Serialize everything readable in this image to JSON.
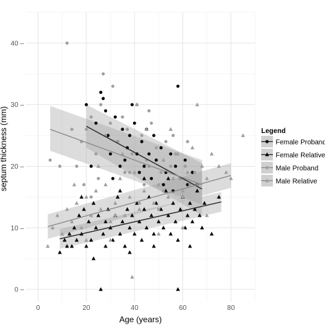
{
  "chart_data": {
    "type": "scatter",
    "xlabel": "Age (years)",
    "ylabel": "septum thickness (mm)",
    "xlim": [
      -5,
      90
    ],
    "ylim": [
      -2,
      45
    ],
    "x_ticks": [
      0,
      20,
      40,
      60,
      80
    ],
    "y_ticks": [
      0,
      10,
      20,
      30,
      40
    ],
    "x_tick_labels": [
      "0",
      "20",
      "40",
      "60",
      "80"
    ],
    "y_tick_labels": [
      "0 –",
      "10 –",
      "20 –",
      "30 –",
      "40 –"
    ],
    "grid": true,
    "legend_position": "right",
    "legend_title": "Legend",
    "series": [
      {
        "name": "Female Proband",
        "color": "#000000",
        "marker": "circle",
        "fit": {
          "x": [
            20,
            68
          ],
          "y": [
            26.5,
            16.3
          ],
          "ci_upper": [
            30.0,
            20.5
          ],
          "ci_lower": [
            23.0,
            12.0
          ]
        },
        "points": [
          [
            20,
            30
          ],
          [
            24,
            27
          ],
          [
            26,
            32
          ],
          [
            27,
            31
          ],
          [
            28,
            29
          ],
          [
            29,
            25
          ],
          [
            30,
            22
          ],
          [
            32,
            28
          ],
          [
            33,
            24
          ],
          [
            35,
            26
          ],
          [
            37,
            23
          ],
          [
            38,
            25
          ],
          [
            40,
            27
          ],
          [
            41,
            22
          ],
          [
            43,
            24
          ],
          [
            44,
            20
          ],
          [
            46,
            22
          ],
          [
            48,
            25
          ],
          [
            49,
            21
          ],
          [
            51,
            23
          ],
          [
            53,
            19
          ],
          [
            55,
            22
          ],
          [
            57,
            20
          ],
          [
            58,
            33
          ],
          [
            59,
            18
          ],
          [
            61,
            21
          ],
          [
            62,
            17
          ],
          [
            64,
            19
          ],
          [
            66,
            17
          ],
          [
            22,
            20
          ],
          [
            31,
            18
          ],
          [
            36,
            21
          ],
          [
            42,
            19
          ],
          [
            47,
            18
          ],
          [
            52,
            17
          ],
          [
            56,
            16
          ],
          [
            45,
            26
          ],
          [
            39,
            30
          ],
          [
            34,
            20
          ]
        ]
      },
      {
        "name": "Female Relative",
        "color": "#000000",
        "marker": "triangle",
        "fit": {
          "x": [
            9,
            76
          ],
          "y": [
            8.2,
            14.2
          ],
          "ci_upper": [
            9.8,
            15.8
          ],
          "ci_lower": [
            6.6,
            12.6
          ]
        },
        "points": [
          [
            9,
            6
          ],
          [
            11,
            8
          ],
          [
            12,
            7
          ],
          [
            13,
            9
          ],
          [
            14,
            7
          ],
          [
            15,
            10
          ],
          [
            16,
            8
          ],
          [
            17,
            12
          ],
          [
            18,
            9
          ],
          [
            19,
            13
          ],
          [
            20,
            7
          ],
          [
            21,
            11
          ],
          [
            22,
            8
          ],
          [
            23,
            14
          ],
          [
            24,
            10
          ],
          [
            25,
            12
          ],
          [
            26,
            0
          ],
          [
            27,
            9
          ],
          [
            28,
            11
          ],
          [
            29,
            13
          ],
          [
            30,
            10
          ],
          [
            31,
            8
          ],
          [
            32,
            12
          ],
          [
            33,
            15
          ],
          [
            34,
            9
          ],
          [
            35,
            11
          ],
          [
            36,
            7
          ],
          [
            37,
            13
          ],
          [
            38,
            10
          ],
          [
            39,
            12
          ],
          [
            40,
            9
          ],
          [
            41,
            14
          ],
          [
            42,
            11
          ],
          [
            43,
            8
          ],
          [
            44,
            13
          ],
          [
            45,
            10
          ],
          [
            46,
            15
          ],
          [
            47,
            12
          ],
          [
            48,
            9
          ],
          [
            49,
            14
          ],
          [
            50,
            11
          ],
          [
            51,
            13
          ],
          [
            52,
            10
          ],
          [
            53,
            16
          ],
          [
            54,
            12
          ],
          [
            55,
            9
          ],
          [
            56,
            14
          ],
          [
            57,
            11
          ],
          [
            58,
            0
          ],
          [
            59,
            13
          ],
          [
            60,
            15
          ],
          [
            61,
            10
          ],
          [
            62,
            12
          ],
          [
            63,
            14
          ],
          [
            64,
            11
          ],
          [
            65,
            13
          ],
          [
            66,
            16
          ],
          [
            67,
            12
          ],
          [
            69,
            14
          ],
          [
            72,
            9
          ],
          [
            75,
            15
          ],
          [
            18,
            15
          ],
          [
            28,
            7
          ],
          [
            38,
            6
          ],
          [
            48,
            7
          ],
          [
            58,
            8
          ],
          [
            68,
            10
          ],
          [
            44,
            18
          ],
          [
            34,
            16
          ],
          [
            54,
            18
          ],
          [
            23,
            5
          ],
          [
            63,
            7
          ]
        ]
      },
      {
        "name": "Male Proband",
        "color": "#9e9e9e",
        "marker": "circle",
        "fit": {
          "x": [
            5,
            68
          ],
          "y": [
            26.0,
            17.0
          ],
          "ci_upper": [
            29.8,
            21.0
          ],
          "ci_lower": [
            22.5,
            13.8
          ]
        },
        "points": [
          [
            5,
            21
          ],
          [
            12,
            40
          ],
          [
            14,
            26
          ],
          [
            18,
            24
          ],
          [
            20,
            26
          ],
          [
            22,
            28
          ],
          [
            24,
            22
          ],
          [
            26,
            30
          ],
          [
            28,
            25
          ],
          [
            30,
            27
          ],
          [
            31,
            33
          ],
          [
            33,
            24
          ],
          [
            35,
            28
          ],
          [
            37,
            26
          ],
          [
            39,
            22
          ],
          [
            41,
            30
          ],
          [
            43,
            25
          ],
          [
            45,
            21
          ],
          [
            47,
            27
          ],
          [
            49,
            23
          ],
          [
            51,
            19
          ],
          [
            53,
            24
          ],
          [
            55,
            20
          ],
          [
            57,
            22
          ],
          [
            59,
            18
          ],
          [
            61,
            20
          ],
          [
            63,
            17
          ],
          [
            65,
            19
          ],
          [
            16,
            20
          ],
          [
            25,
            18
          ],
          [
            36,
            19
          ],
          [
            44,
            17
          ],
          [
            52,
            16
          ],
          [
            60,
            15
          ],
          [
            32,
            12
          ],
          [
            42,
            14
          ],
          [
            50,
            13
          ],
          [
            22,
            15
          ],
          [
            27,
            35
          ],
          [
            9,
            20
          ],
          [
            46,
            29
          ],
          [
            56,
            25
          ],
          [
            62,
            24
          ],
          [
            38,
            19
          ],
          [
            19,
            17
          ]
        ]
      },
      {
        "name": "Male Relative",
        "color": "#9e9e9e",
        "marker": "triangle",
        "fit": {
          "x": [
            4,
            80
          ],
          "y": [
            10.2,
            18.5
          ],
          "ci_upper": [
            12.2,
            20.5
          ],
          "ci_lower": [
            8.2,
            16.5
          ]
        },
        "points": [
          [
            4,
            7
          ],
          [
            6,
            10
          ],
          [
            8,
            12
          ],
          [
            10,
            9
          ],
          [
            12,
            13
          ],
          [
            14,
            11
          ],
          [
            16,
            14
          ],
          [
            18,
            10
          ],
          [
            20,
            15
          ],
          [
            22,
            12
          ],
          [
            24,
            16
          ],
          [
            26,
            13
          ],
          [
            28,
            17
          ],
          [
            30,
            11
          ],
          [
            32,
            14
          ],
          [
            34,
            18
          ],
          [
            36,
            12
          ],
          [
            38,
            15
          ],
          [
            40,
            19
          ],
          [
            42,
            13
          ],
          [
            44,
            16
          ],
          [
            46,
            20
          ],
          [
            48,
            14
          ],
          [
            50,
            17
          ],
          [
            52,
            21
          ],
          [
            54,
            15
          ],
          [
            56,
            18
          ],
          [
            58,
            22
          ],
          [
            60,
            16
          ],
          [
            62,
            19
          ],
          [
            64,
            23
          ],
          [
            66,
            17
          ],
          [
            68,
            20
          ],
          [
            70,
            18
          ],
          [
            72,
            22
          ],
          [
            75,
            20
          ],
          [
            78,
            19
          ],
          [
            80,
            18
          ],
          [
            85,
            25
          ],
          [
            66,
            30
          ],
          [
            41,
            30
          ],
          [
            39,
            2
          ],
          [
            20,
            8
          ],
          [
            30,
            8
          ],
          [
            50,
            9
          ],
          [
            60,
            10
          ],
          [
            70,
            12
          ],
          [
            45,
            26
          ],
          [
            15,
            17
          ],
          [
            25,
            20
          ],
          [
            35,
            22
          ],
          [
            55,
            26
          ]
        ]
      }
    ]
  }
}
